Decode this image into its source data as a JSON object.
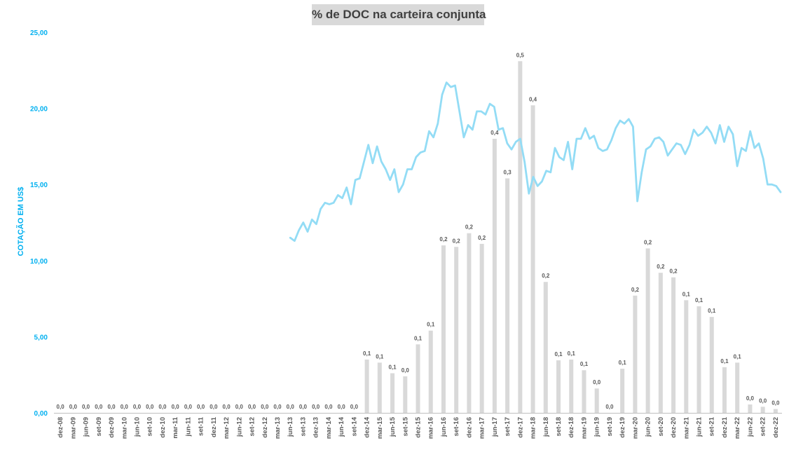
{
  "chart_data": {
    "type": "bar+line",
    "title": "% de DOC na carteira conjunta",
    "ylabel": "COTAÇÃO EM US$",
    "ylim": [
      0,
      25
    ],
    "y_ticks": [
      "0,00",
      "5,00",
      "10,00",
      "15,00",
      "20,00",
      "25,00"
    ],
    "grid": false,
    "legend": "none",
    "colors": {
      "bar": "#d9d9d9",
      "line": "#93dcf5",
      "axis_text": "#00b0f0",
      "label_text": "#595959"
    },
    "categories": [
      "dez-08",
      "mar-09",
      "jun-09",
      "set-09",
      "dez-09",
      "mar-10",
      "jun-10",
      "set-10",
      "dez-10",
      "mar-11",
      "jun-11",
      "set-11",
      "dez-11",
      "mar-12",
      "jun-12",
      "set-12",
      "dez-12",
      "mar-13",
      "jun-13",
      "set-13",
      "dez-13",
      "mar-14",
      "jun-14",
      "set-14",
      "dez-14",
      "mar-15",
      "jun-15",
      "set-15",
      "dez-15",
      "mar-16",
      "jun-16",
      "set-16",
      "dez-16",
      "mar-17",
      "jun-17",
      "set-17",
      "dez-17",
      "mar-18",
      "jun-18",
      "set-18",
      "dez-18",
      "mar-19",
      "jun-19",
      "set-19",
      "dez-19",
      "mar-20",
      "jun-20",
      "set-20",
      "dez-20",
      "mar-21",
      "jun-21",
      "set-21",
      "dez-21",
      "mar-22",
      "jun-22",
      "set-22",
      "dez-22"
    ],
    "bar_values": [
      0,
      0,
      0,
      0,
      0,
      0,
      0,
      0,
      0,
      0,
      0,
      0,
      0,
      0,
      0,
      0,
      0,
      0,
      0,
      0,
      0,
      0,
      0,
      0,
      3.5,
      3.3,
      2.6,
      2.4,
      4.5,
      5.4,
      11.0,
      10.9,
      11.8,
      11.1,
      18.0,
      15.4,
      23.1,
      20.2,
      8.6,
      3.45,
      3.5,
      2.8,
      1.6,
      0,
      2.9,
      7.7,
      10.8,
      9.2,
      8.9,
      7.4,
      7.0,
      6.3,
      3.0,
      3.3,
      0.55,
      0.4,
      0.25
    ],
    "bar_labels": [
      "0,0",
      "0,0",
      "0,0",
      "0,0",
      "0,0",
      "0,0",
      "0,0",
      "0,0",
      "0,0",
      "0,0",
      "0,0",
      "0,0",
      "0,0",
      "0,0",
      "0,0",
      "0,0",
      "0,0",
      "0,0",
      "0,0",
      "0,0",
      "0,0",
      "0,0",
      "0,0",
      "0,0",
      "0,1",
      "0,1",
      "0,1",
      "0,0",
      "0,1",
      "0,1",
      "0,2",
      "0,2",
      "0,2",
      "0,2",
      "0,4",
      "0,3",
      "0,5",
      "0,4",
      "0,2",
      "0,1",
      "0,1",
      "0,1",
      "0,0",
      "0,0",
      "0,1",
      "0,2",
      "0,2",
      "0,2",
      "0,2",
      "0,1",
      "0,1",
      "0,1",
      "0,1",
      "0,1",
      "0,0",
      "0,0",
      "0,0"
    ],
    "line_values": [
      11.5,
      11.3,
      12.0,
      12.5,
      11.9,
      12.7,
      12.4,
      13.4,
      13.8,
      13.7,
      13.8,
      14.3,
      14.1,
      14.8,
      13.7,
      15.3,
      15.4,
      16.5,
      17.6,
      16.4,
      17.5,
      16.5,
      16.0,
      15.3,
      16.0,
      14.5,
      15.0,
      16.0,
      16.0,
      16.8,
      17.1,
      17.2,
      18.5,
      18.1,
      19.0,
      20.9,
      21.7,
      21.4,
      21.5,
      19.8,
      18.1,
      18.9,
      18.6,
      19.8,
      19.8,
      19.6,
      20.3,
      20.1,
      18.6,
      18.7,
      17.7,
      17.3,
      17.8,
      18.0,
      16.5,
      14.4,
      15.5,
      14.9,
      15.2,
      15.9,
      15.8,
      17.4,
      16.8,
      16.6,
      17.8,
      16.0,
      18.0,
      18.0,
      18.7,
      18.0,
      18.2,
      17.4,
      17.2,
      17.3,
      17.9,
      18.7,
      19.2,
      19.0,
      19.3,
      18.8,
      13.9,
      15.8,
      17.3,
      17.5,
      18.0,
      18.1,
      17.8,
      16.9,
      17.3,
      17.7,
      17.6,
      17.0,
      17.6,
      18.6,
      18.2,
      18.4,
      18.8,
      18.4,
      17.7,
      18.9,
      17.8,
      18.8,
      18.3,
      16.2,
      17.4,
      17.2,
      18.5,
      17.4,
      17.7,
      16.7,
      15.0,
      15.0,
      14.9,
      14.5
    ]
  }
}
